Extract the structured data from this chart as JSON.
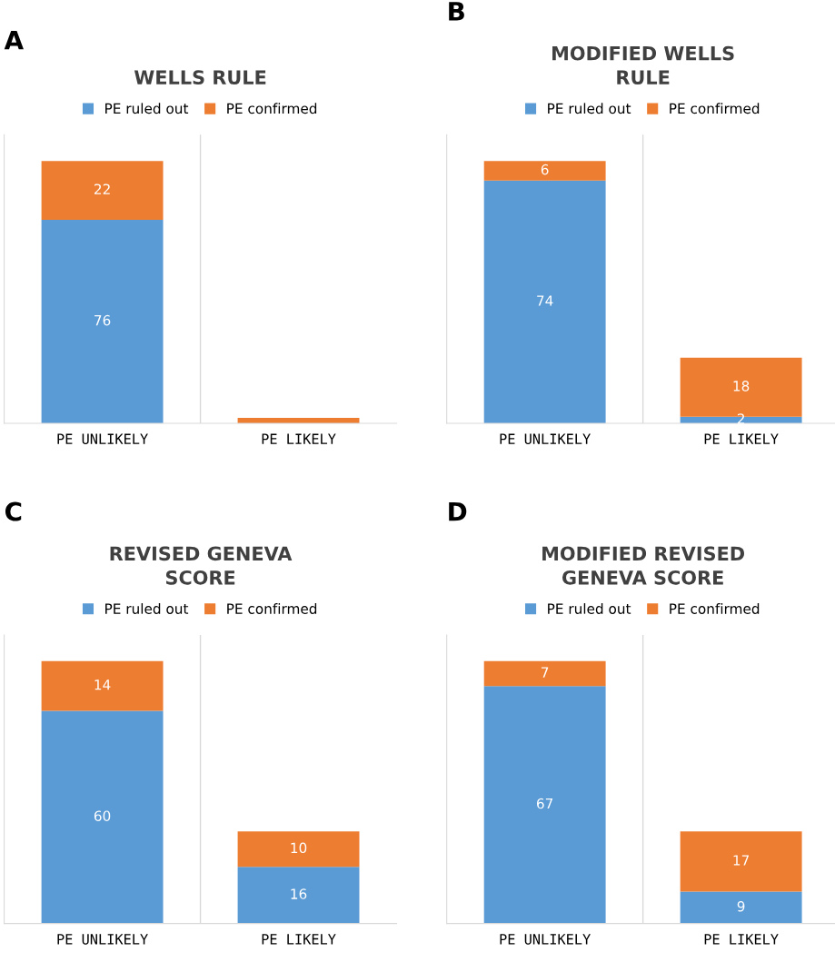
{
  "chart_data": [
    {
      "type": "bar",
      "stacked": true,
      "title": "WELLS RULE",
      "annotations": [
        "A"
      ],
      "categories": [
        "PE UNLIKELY",
        "PE LIKELY"
      ],
      "legend": "top",
      "tick_labels": "x",
      "series": [
        {
          "name": "PE ruled out",
          "color": "#5b9bd5",
          "values": [
            76,
            0
          ],
          "value_labels": [
            "76",
            null
          ]
        },
        {
          "name": "PE confirmed",
          "color": "#ed7d31",
          "values": [
            22,
            2
          ],
          "value_labels": [
            "22",
            null
          ]
        }
      ]
    },
    {
      "type": "bar",
      "stacked": true,
      "title": "MODIFIED WELLS\nRULE",
      "annotations": [
        "B"
      ],
      "categories": [
        "PE UNLIKELY",
        "PE LIKELY"
      ],
      "legend": "top",
      "tick_labels": "x",
      "series": [
        {
          "name": "PE ruled out",
          "color": "#5b9bd5",
          "values": [
            74,
            2
          ],
          "value_labels": [
            "74",
            "2"
          ]
        },
        {
          "name": "PE confirmed",
          "color": "#ed7d31",
          "values": [
            6,
            18
          ],
          "value_labels": [
            "6",
            "18"
          ]
        }
      ]
    },
    {
      "type": "bar",
      "stacked": true,
      "title": "REVISED GENEVA\nSCORE",
      "annotations": [
        "C"
      ],
      "categories": [
        "PE UNLIKELY",
        "PE LIKELY"
      ],
      "legend": "top",
      "tick_labels": "x",
      "series": [
        {
          "name": "PE ruled out",
          "color": "#5b9bd5",
          "values": [
            60,
            16
          ],
          "value_labels": [
            "60",
            "16"
          ]
        },
        {
          "name": "PE confirmed",
          "color": "#ed7d31",
          "values": [
            14,
            10
          ],
          "value_labels": [
            "14",
            "10"
          ]
        }
      ]
    },
    {
      "type": "bar",
      "stacked": true,
      "title": "MODIFIED REVISED\nGENEVA SCORE",
      "annotations": [
        "D"
      ],
      "categories": [
        "PE UNLIKELY",
        "PE LIKELY"
      ],
      "legend": "top",
      "tick_labels": "x",
      "series": [
        {
          "name": "PE ruled out",
          "color": "#5b9bd5",
          "values": [
            67,
            9
          ],
          "value_labels": [
            "67",
            "9"
          ]
        },
        {
          "name": "PE confirmed",
          "color": "#ed7d31",
          "values": [
            7,
            17
          ],
          "value_labels": [
            "7",
            "17"
          ]
        }
      ]
    }
  ]
}
